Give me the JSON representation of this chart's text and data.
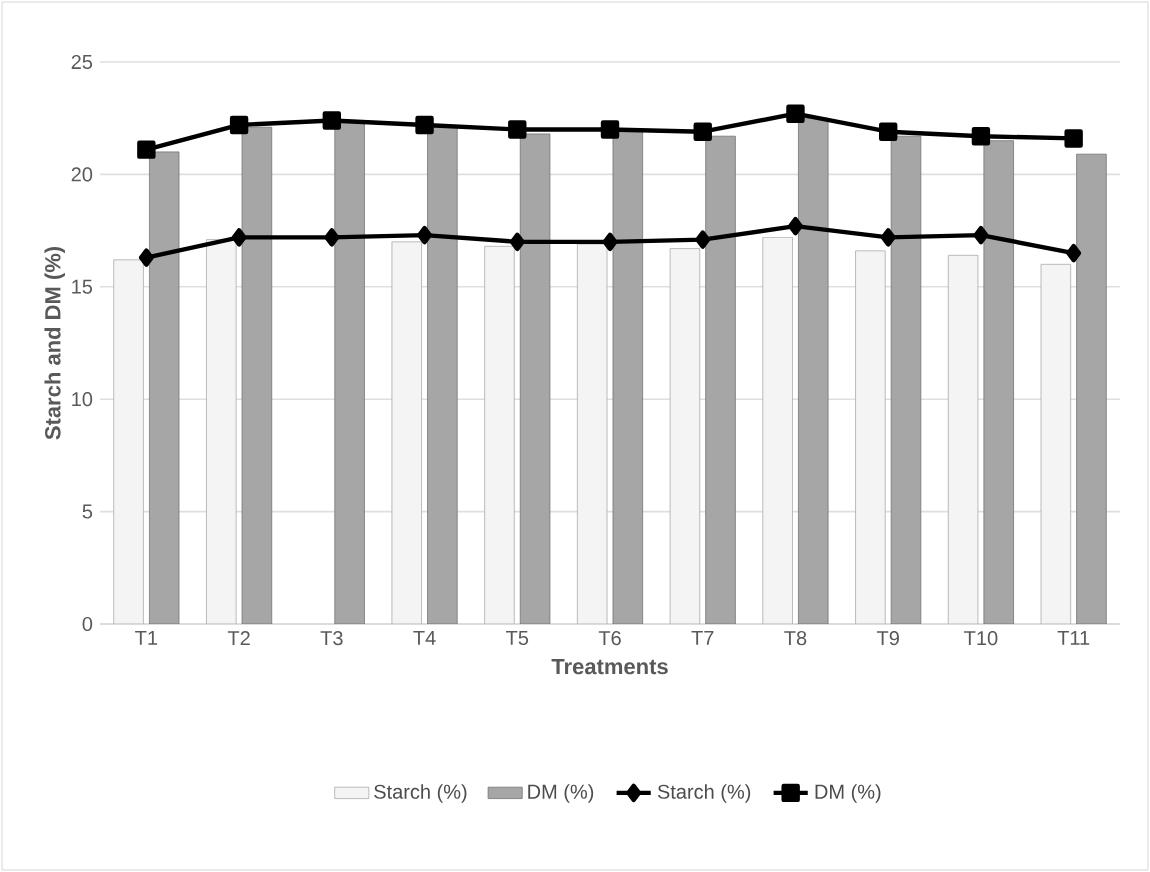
{
  "chart_data": {
    "type": "bar",
    "xlabel": "Treatments",
    "ylabel": "Starch and DM (%)",
    "categories": [
      "T1",
      "T2",
      "T3",
      "T4",
      "T5",
      "T6",
      "T7",
      "T8",
      "T9",
      "T10",
      "T11"
    ],
    "series": [
      {
        "name": "Starch (%)",
        "color": "#f4f4f4",
        "values": [
          16.2,
          17.1,
          null,
          17.0,
          16.8,
          16.9,
          16.7,
          17.2,
          16.6,
          16.4,
          16.0
        ]
      },
      {
        "name": "DM (%)",
        "color": "#a6a6a6",
        "values": [
          21.0,
          22.1,
          22.3,
          22.1,
          21.8,
          21.9,
          21.7,
          22.5,
          21.7,
          21.5,
          20.9
        ]
      },
      {
        "name": "Starch (%)",
        "type": "line",
        "marker": "diamond",
        "color": "#000000",
        "values": [
          16.3,
          17.2,
          17.2,
          17.3,
          17.0,
          17.0,
          17.1,
          17.7,
          17.2,
          17.3,
          16.5
        ]
      },
      {
        "name": "DM (%)",
        "type": "line",
        "marker": "square",
        "color": "#000000",
        "values": [
          21.1,
          22.2,
          22.4,
          22.2,
          22.0,
          22.0,
          21.9,
          22.7,
          21.9,
          21.7,
          21.6
        ]
      }
    ],
    "ylim": [
      0,
      25
    ],
    "yticks": [
      0,
      5,
      10,
      15,
      20,
      25
    ],
    "grid": "y",
    "legend": "bottom"
  }
}
